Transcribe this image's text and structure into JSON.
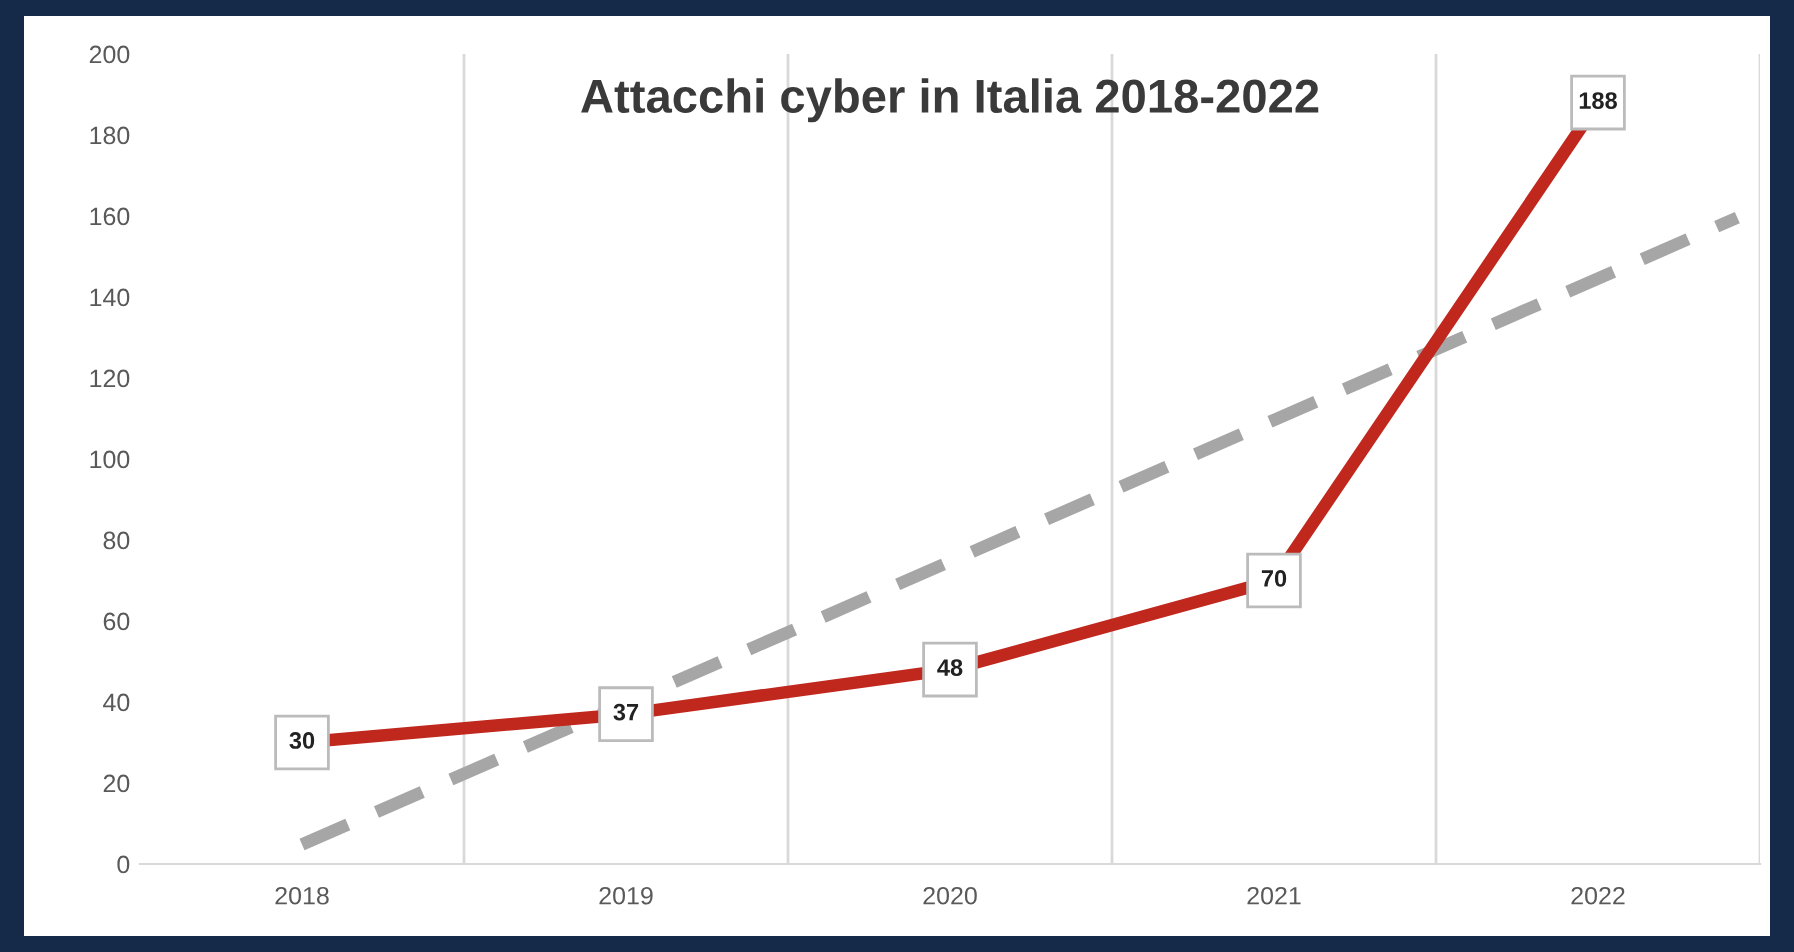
{
  "chart_data": {
    "type": "line",
    "title": "Attacchi cyber in Italia 2018-2022",
    "x": [
      2018,
      2019,
      2020,
      2021,
      2022
    ],
    "series": [
      {
        "color": "#c0281e",
        "values": [
          30,
          37,
          48,
          70,
          188
        ],
        "data_labels": true,
        "line_style": "solid",
        "marker": "square"
      },
      {
        "color": "#a6a6a6",
        "x": [
          2018,
          2022.43
        ],
        "values": [
          4.8,
          159.6
        ],
        "line_style": "dashed"
      }
    ],
    "xlim": [
      2017.5,
      2022.5
    ],
    "xticks": [
      2018,
      2019,
      2020,
      2021,
      2022
    ],
    "ref_lines": [
      {
        "axis": "x",
        "value": 2018.5,
        "color": "#d9d9d9"
      },
      {
        "axis": "x",
        "value": 2019.5,
        "color": "#d9d9d9"
      },
      {
        "axis": "x",
        "value": 2020.5,
        "color": "#d9d9d9"
      },
      {
        "axis": "x",
        "value": 2021.5,
        "color": "#d9d9d9"
      },
      {
        "axis": "x",
        "value": 2022.5,
        "color": "#d9d9d9"
      }
    ],
    "ylim": [
      0,
      200
    ],
    "yticks": [
      0,
      20,
      40,
      60,
      80,
      100,
      120,
      140,
      160,
      180,
      200
    ],
    "grid": false,
    "legend": false,
    "marker": "none"
  }
}
